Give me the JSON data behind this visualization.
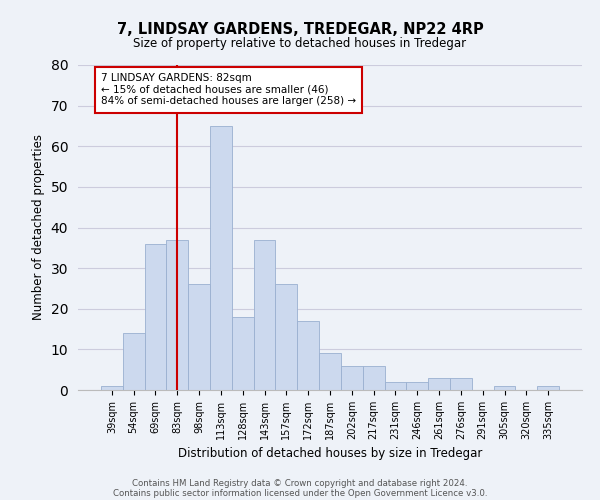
{
  "title": "7, LINDSAY GARDENS, TREDEGAR, NP22 4RP",
  "subtitle": "Size of property relative to detached houses in Tredegar",
  "xlabel": "Distribution of detached houses by size in Tredegar",
  "ylabel": "Number of detached properties",
  "bar_labels": [
    "39sqm",
    "54sqm",
    "69sqm",
    "83sqm",
    "98sqm",
    "113sqm",
    "128sqm",
    "143sqm",
    "157sqm",
    "172sqm",
    "187sqm",
    "202sqm",
    "217sqm",
    "231sqm",
    "246sqm",
    "261sqm",
    "276sqm",
    "291sqm",
    "305sqm",
    "320sqm",
    "335sqm"
  ],
  "bar_values": [
    1,
    14,
    36,
    37,
    26,
    65,
    18,
    37,
    26,
    17,
    9,
    6,
    6,
    2,
    2,
    3,
    3,
    0,
    1,
    0,
    1
  ],
  "bar_color": "#ccd9ee",
  "bar_edge_color": "#9ab0d0",
  "vline_x": 3,
  "vline_color": "#cc0000",
  "annotation_text": "7 LINDSAY GARDENS: 82sqm\n← 15% of detached houses are smaller (46)\n84% of semi-detached houses are larger (258) →",
  "annotation_box_color": "#ffffff",
  "annotation_box_edge": "#cc0000",
  "ylim": [
    0,
    80
  ],
  "yticks": [
    0,
    10,
    20,
    30,
    40,
    50,
    60,
    70,
    80
  ],
  "grid_color": "#ccccdd",
  "background_color": "#eef2f8",
  "footer_line1": "Contains HM Land Registry data © Crown copyright and database right 2024.",
  "footer_line2": "Contains public sector information licensed under the Open Government Licence v3.0."
}
